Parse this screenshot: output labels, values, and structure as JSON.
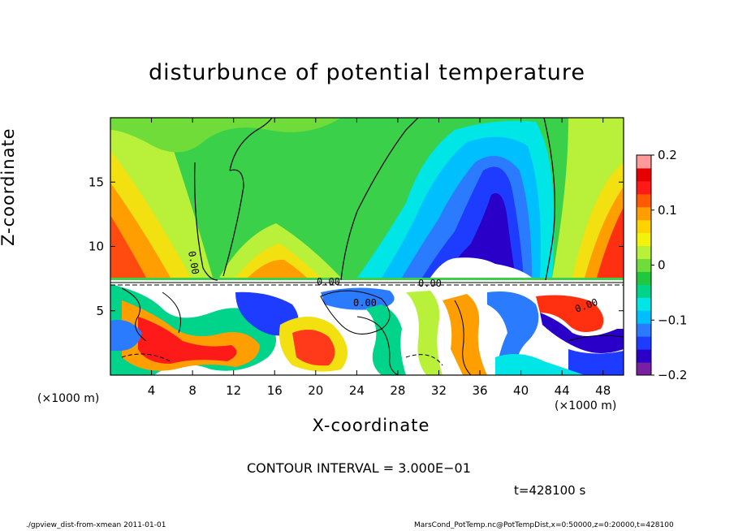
{
  "chart_data": {
    "type": "heatmap",
    "title": "disturbunce of potential temperature",
    "xlabel": "X-coordinate",
    "ylabel": "Z-coordinate",
    "x_unit": "(×1000 m)",
    "y_unit": "(×1000 m)",
    "xlim": [
      0,
      50
    ],
    "ylim": [
      0,
      20
    ],
    "x_ticks": [
      4,
      8,
      12,
      16,
      20,
      24,
      28,
      32,
      36,
      40,
      44,
      48
    ],
    "y_ticks": [
      5,
      10,
      15
    ],
    "colorbar": {
      "range": [
        -0.2,
        0.2
      ],
      "tick_values": [
        0.2,
        0.1,
        0,
        -0.1,
        -0.2
      ],
      "tick_labels": [
        "0.2",
        "0.1",
        "0",
        "−0.1",
        "−0.2"
      ],
      "colors": [
        "#7b1fa2",
        "#2a00c8",
        "#1e3cff",
        "#2b7bff",
        "#00bfff",
        "#00e5e5",
        "#00d48a",
        "#20c840",
        "#6fdc3a",
        "#b8f03a",
        "#f2f20a",
        "#ffd200",
        "#ff9e00",
        "#ff5a00",
        "#ff1a1a",
        "#e60000",
        "#ff9a9a"
      ]
    },
    "contour_labels": [
      "0.00",
      "0.00",
      "0.00",
      "0.00",
      "0.00"
    ],
    "contour_interval_text": "CONTOUR INTERVAL = 3.000E−01"
  },
  "time_label": "t=428100 s",
  "footer_left": "./gpview_dist-from-xmean   2011-01-01",
  "footer_right": "MarsCond_PotTemp.nc@PotTempDist,x=0:50000,z=0:20000,t=428100"
}
